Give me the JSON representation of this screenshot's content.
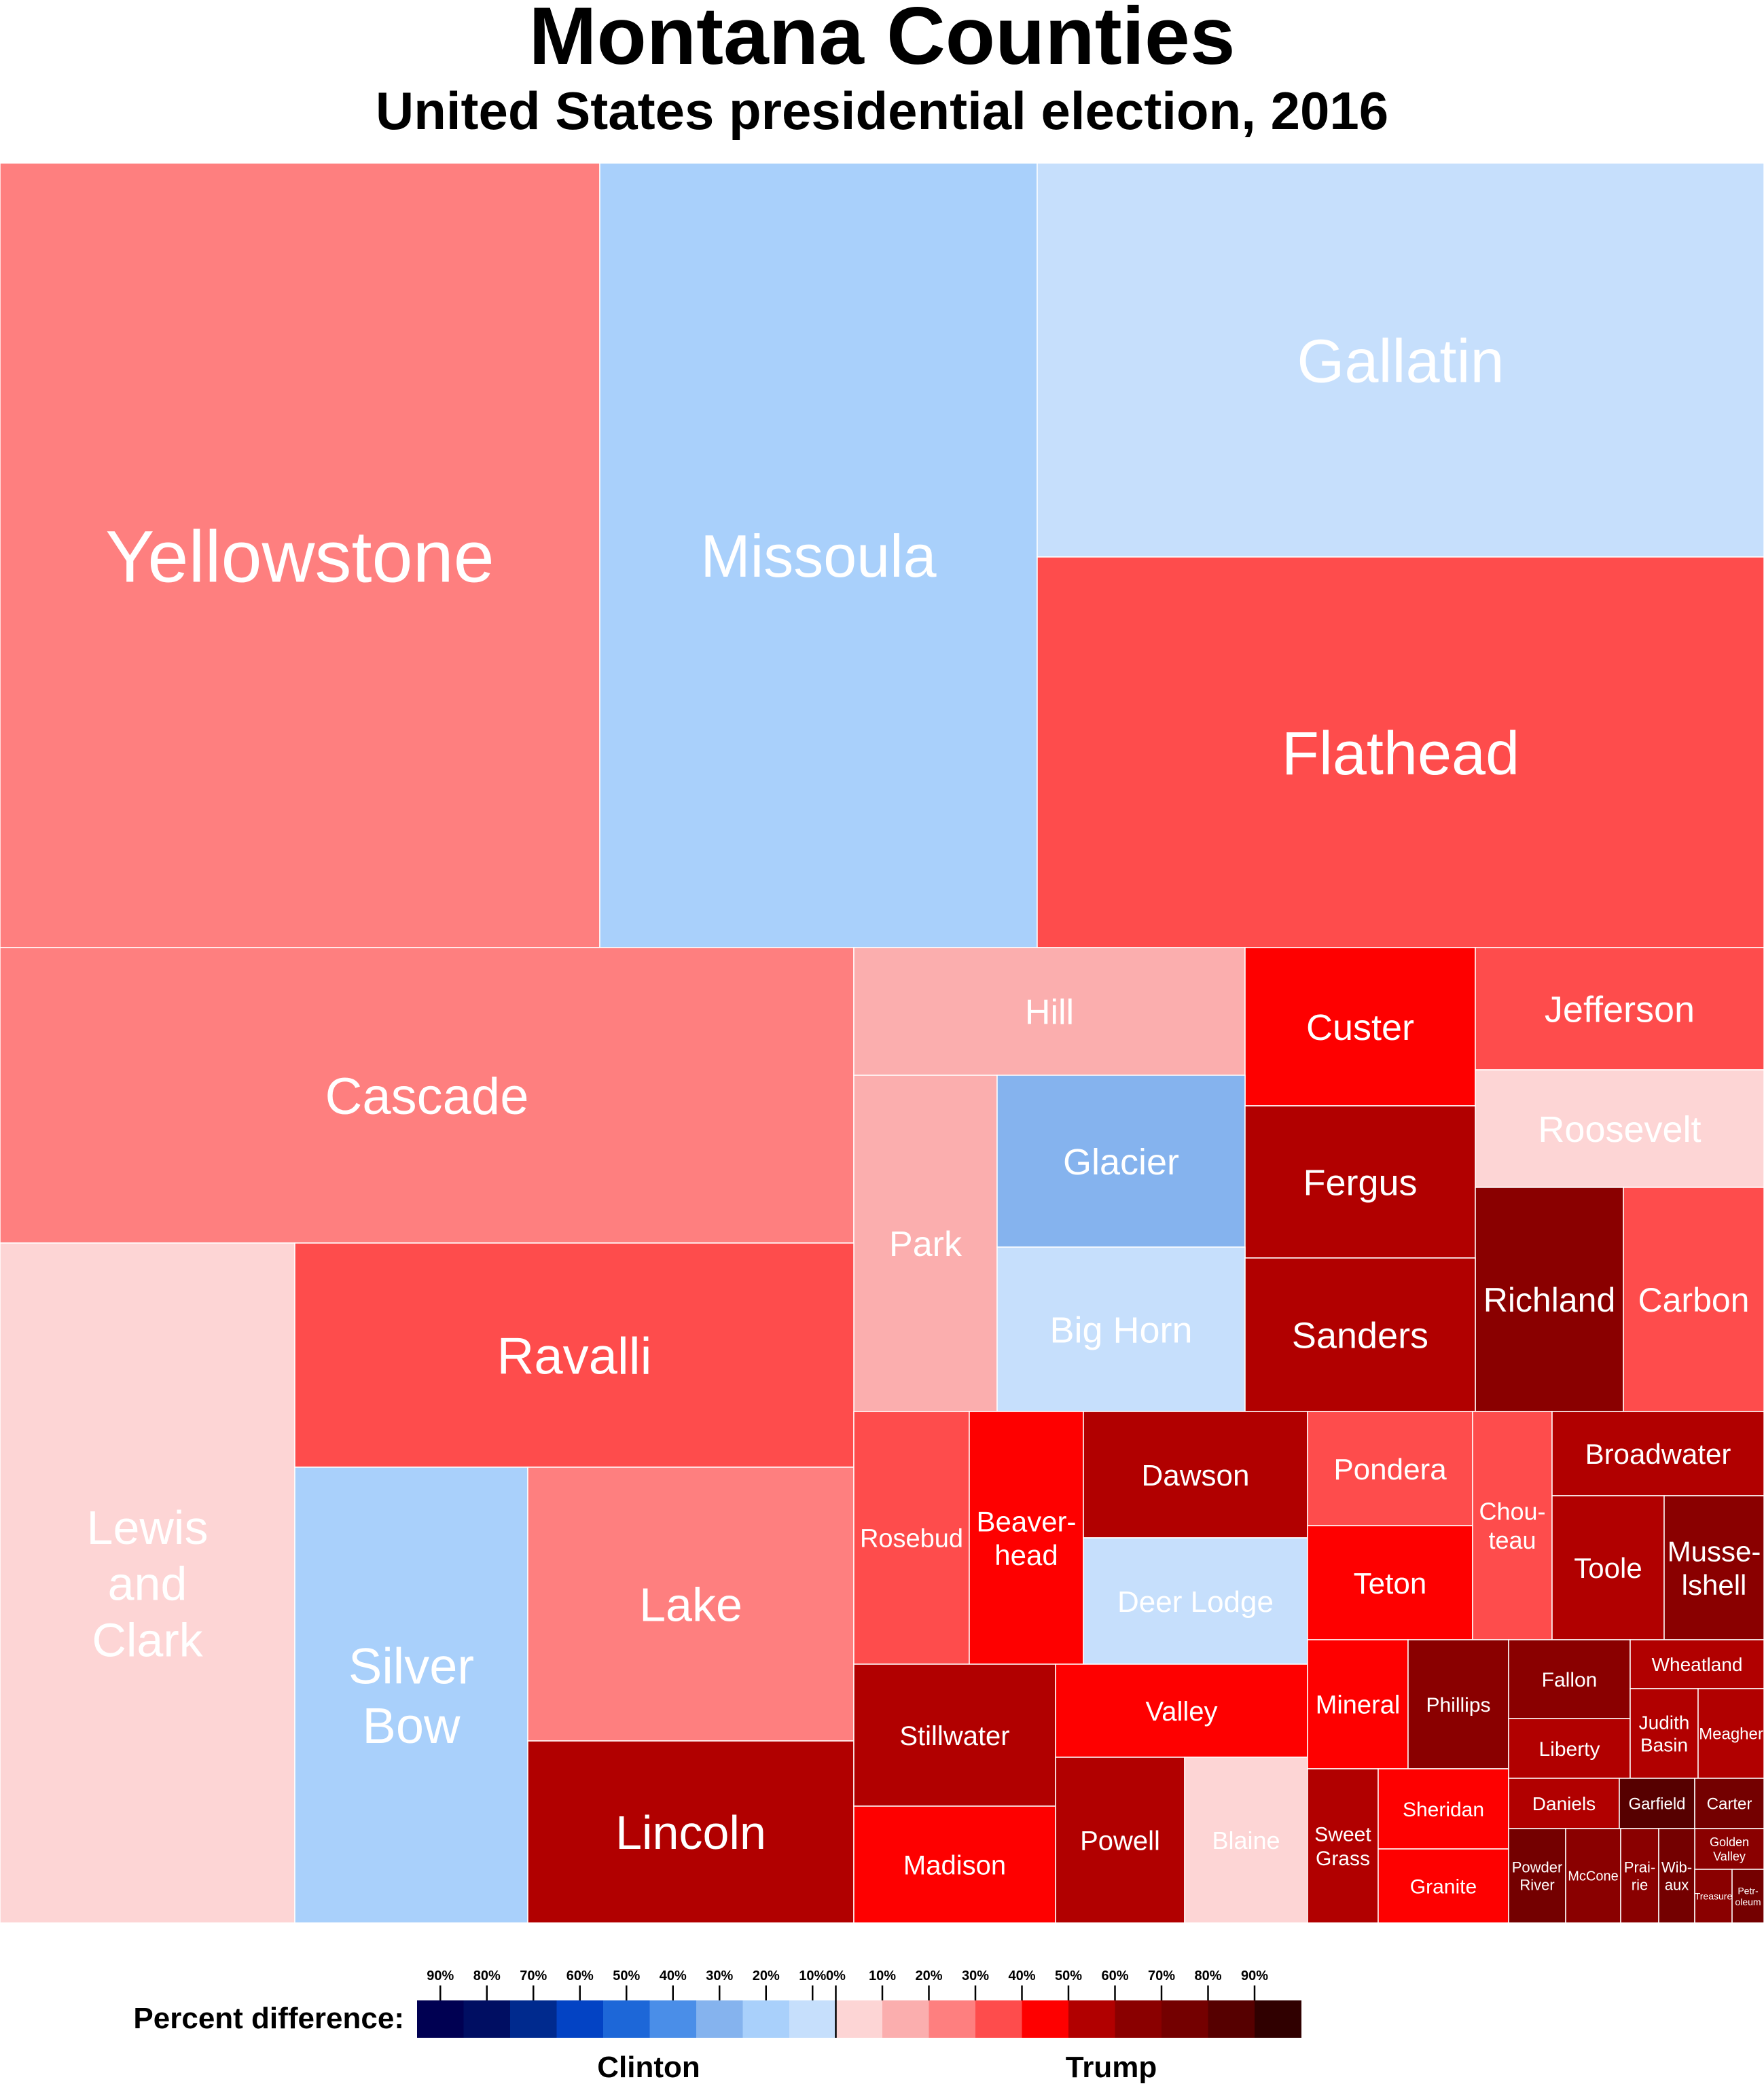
{
  "chart_data": {
    "type": "treemap",
    "title": "Montana Counties",
    "subtitle": "United States presidential election, 2016",
    "colors": {
      "clinton": [
        "#c6dffc",
        "#a9d0fb",
        "#85b3ee",
        "#4a8ee8",
        "#1d67d8",
        "#0343c4",
        "#002a8e",
        "#000e62",
        "#000052"
      ],
      "trump": [
        "#fdd5d5",
        "#fbaeae",
        "#fe7f7f",
        "#fe4c4c",
        "#fe0000",
        "#b10000",
        "#8a0000",
        "#740000",
        "#560000",
        "#300000"
      ]
    },
    "counties": [
      {
        "name": "Yellowstone",
        "party": "Trump",
        "bin": 2
      },
      {
        "name": "Missoula",
        "party": "Clinton",
        "bin": 1
      },
      {
        "name": "Gallatin",
        "party": "Clinton",
        "bin": 0
      },
      {
        "name": "Flathead",
        "party": "Trump",
        "bin": 3
      },
      {
        "name": "Cascade",
        "party": "Trump",
        "bin": 2
      },
      {
        "name": "Hill",
        "party": "Trump",
        "bin": 1
      },
      {
        "name": "Custer",
        "party": "Trump",
        "bin": 4
      },
      {
        "name": "Jefferson",
        "party": "Trump",
        "bin": 3
      },
      {
        "name": "Roosevelt",
        "party": "Trump",
        "bin": 0
      },
      {
        "name": "Park",
        "party": "Trump",
        "bin": 1
      },
      {
        "name": "Glacier",
        "party": "Clinton",
        "bin": 2
      },
      {
        "name": "Fergus",
        "party": "Trump",
        "bin": 5
      },
      {
        "name": "Big Horn",
        "party": "Clinton",
        "bin": 0
      },
      {
        "name": "Richland",
        "party": "Trump",
        "bin": 6
      },
      {
        "name": "Carbon",
        "party": "Trump",
        "bin": 3
      },
      {
        "name": "Sanders",
        "party": "Trump",
        "bin": 5
      },
      {
        "name": "Lewis and Clark",
        "party": "Trump",
        "bin": 0
      },
      {
        "name": "Ravalli",
        "party": "Trump",
        "bin": 3
      },
      {
        "name": "Silver Bow",
        "party": "Clinton",
        "bin": 1
      },
      {
        "name": "Lake",
        "party": "Trump",
        "bin": 2
      },
      {
        "name": "Lincoln",
        "party": "Trump",
        "bin": 5
      },
      {
        "name": "Rosebud",
        "party": "Trump",
        "bin": 3
      },
      {
        "name": "Beaver-head",
        "party": "Trump",
        "bin": 4
      },
      {
        "name": "Dawson",
        "party": "Trump",
        "bin": 5
      },
      {
        "name": "Deer Lodge",
        "party": "Clinton",
        "bin": 0
      },
      {
        "name": "Pondera",
        "party": "Trump",
        "bin": 3
      },
      {
        "name": "Teton",
        "party": "Trump",
        "bin": 4
      },
      {
        "name": "Chou-teau",
        "party": "Trump",
        "bin": 3
      },
      {
        "name": "Broadwater",
        "party": "Trump",
        "bin": 5
      },
      {
        "name": "Toole",
        "party": "Trump",
        "bin": 5
      },
      {
        "name": "Musse-lshell",
        "party": "Trump",
        "bin": 6
      },
      {
        "name": "Stillwater",
        "party": "Trump",
        "bin": 5
      },
      {
        "name": "Madison",
        "party": "Trump",
        "bin": 4
      },
      {
        "name": "Valley",
        "party": "Trump",
        "bin": 4
      },
      {
        "name": "Powell",
        "party": "Trump",
        "bin": 5
      },
      {
        "name": "Blaine",
        "party": "Trump",
        "bin": 0
      },
      {
        "name": "Mineral",
        "party": "Trump",
        "bin": 4
      },
      {
        "name": "Phillips",
        "party": "Trump",
        "bin": 6
      },
      {
        "name": "Sweet Grass",
        "party": "Trump",
        "bin": 5
      },
      {
        "name": "Sheridan",
        "party": "Trump",
        "bin": 4
      },
      {
        "name": "Granite",
        "party": "Trump",
        "bin": 4
      },
      {
        "name": "Fallon",
        "party": "Trump",
        "bin": 6
      },
      {
        "name": "Liberty",
        "party": "Trump",
        "bin": 5
      },
      {
        "name": "Wheatland",
        "party": "Trump",
        "bin": 5
      },
      {
        "name": "Judith Basin",
        "party": "Trump",
        "bin": 5
      },
      {
        "name": "Meagher",
        "party": "Trump",
        "bin": 5
      },
      {
        "name": "Daniels",
        "party": "Trump",
        "bin": 5
      },
      {
        "name": "Garfield",
        "party": "Trump",
        "bin": 8
      },
      {
        "name": "Carter",
        "party": "Trump",
        "bin": 7
      },
      {
        "name": "Golden Valley",
        "party": "Trump",
        "bin": 6
      },
      {
        "name": "Powder River",
        "party": "Trump",
        "bin": 7
      },
      {
        "name": "McCone",
        "party": "Trump",
        "bin": 6
      },
      {
        "name": "Prai-rie",
        "party": "Trump",
        "bin": 6
      },
      {
        "name": "Wib-aux",
        "party": "Trump",
        "bin": 7
      },
      {
        "name": "Treasure",
        "party": "Trump",
        "bin": 6
      },
      {
        "name": "Petr-oleum",
        "party": "Trump",
        "bin": 7
      }
    ],
    "legend": {
      "label": "Percent difference:",
      "ticks": [
        "90%",
        "80%",
        "70%",
        "60%",
        "50%",
        "40%",
        "30%",
        "20%",
        "10%",
        "0%",
        "10%",
        "20%",
        "30%",
        "40%",
        "50%",
        "60%",
        "70%",
        "80%",
        "90%"
      ],
      "left_label": "Clinton",
      "right_label": "Trump"
    }
  }
}
